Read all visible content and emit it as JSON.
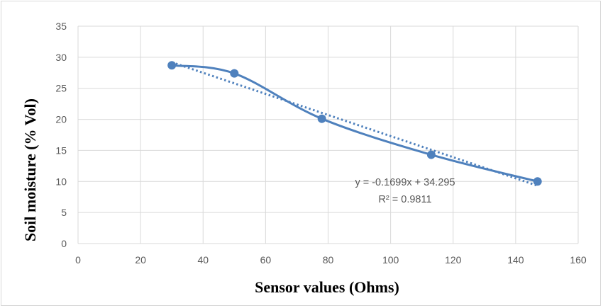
{
  "chart_data": {
    "type": "scatter",
    "xlabel": "Sensor values (Ohms)",
    "ylabel": "Soil moisture  (% Vol)",
    "xlim": [
      0,
      160
    ],
    "ylim": [
      0,
      35
    ],
    "x_ticks": [
      0,
      20,
      40,
      60,
      80,
      100,
      120,
      140,
      160
    ],
    "y_ticks": [
      0,
      5,
      10,
      15,
      20,
      25,
      30,
      35
    ],
    "grid": true,
    "series": [
      {
        "x": [
          30,
          50,
          78,
          113,
          147
        ],
        "y": [
          28.7,
          27.4,
          20.1,
          14.3,
          10.0
        ],
        "style": "smooth line with markers",
        "color": "#4f81bd"
      }
    ],
    "trendline": {
      "kind": "linear",
      "slope": -0.1699,
      "intercept": 34.295,
      "x_range": [
        30,
        147
      ],
      "style": "dotted",
      "color": "#4f81bd"
    },
    "annotations": {
      "equation": "y = -0.1699x + 34.295",
      "r_squared": "R² = 0.9811"
    }
  }
}
